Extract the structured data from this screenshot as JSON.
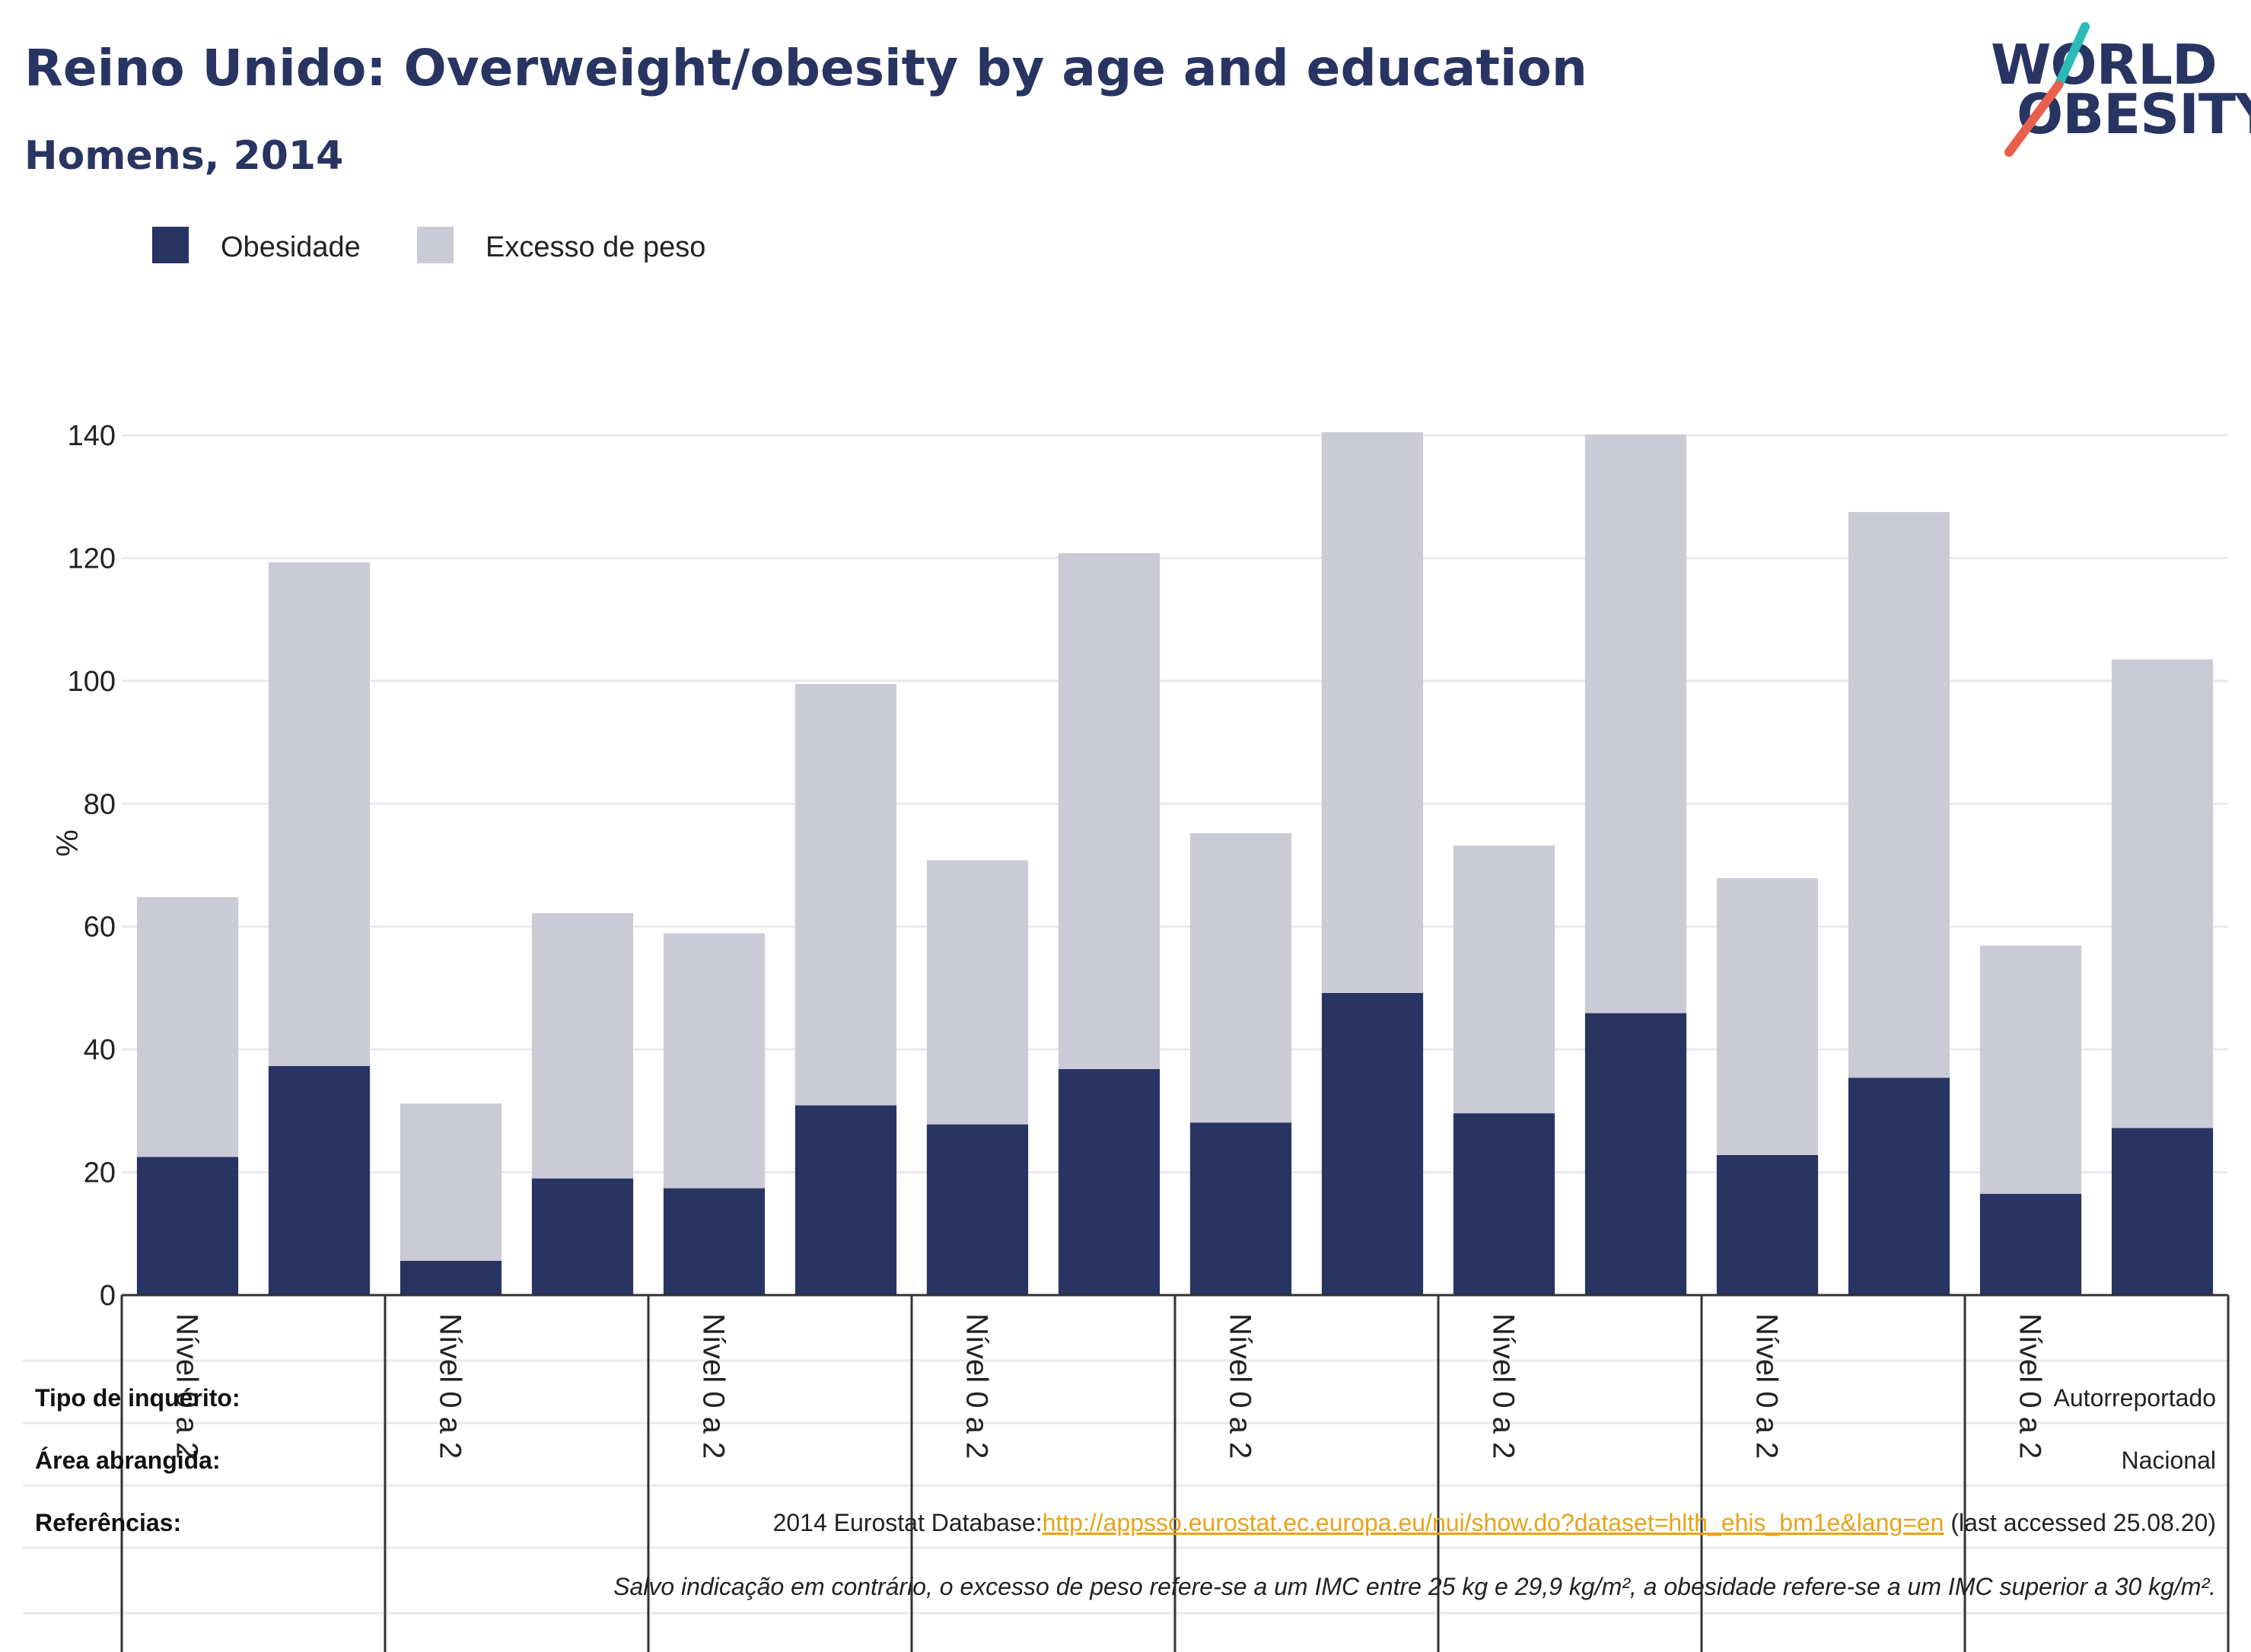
{
  "header": {
    "title": "Reino Unido: Overweight/obesity by age and education",
    "subtitle": "Homens, 2014"
  },
  "logo": {
    "line1": "WORLD",
    "line2": "OBESITY",
    "text_color": "#283462",
    "slash_colors": [
      "#2bbbb6",
      "#e8604c"
    ]
  },
  "colors": {
    "obesity": "#283462",
    "overweight": "#cacbd7",
    "grid": "#e9e9ee",
    "axis": "#333333"
  },
  "chart_data": {
    "type": "bar",
    "stacked": true,
    "title": "Reino Unido: Overweight/obesity by age and education",
    "subtitle": "Homens, 2014",
    "ylabel": "%",
    "ylim": [
      0,
      140
    ],
    "yticks": [
      0,
      20,
      40,
      60,
      80,
      100,
      120,
      140
    ],
    "grid": true,
    "legend_position": "top-left",
    "categories": [
      "Nível 0 a 2",
      "",
      "Nível 0 a 2",
      "",
      "Nível 0 a 2",
      "",
      "Nível 0 a 2",
      "",
      "Nível 0 a 2",
      "",
      "Nível 0 a 2",
      "",
      "Nível 0 a 2",
      "",
      "Nível 0 a 2",
      ""
    ],
    "series": [
      {
        "name": "Obesidade",
        "color": "#283462",
        "values": [
          22.5,
          37.3,
          5.6,
          19.0,
          17.4,
          30.9,
          27.8,
          36.8,
          28.1,
          49.2,
          29.6,
          45.9,
          22.8,
          35.4,
          16.5,
          27.2
        ]
      },
      {
        "name": "Excesso de peso",
        "color": "#cacbd7",
        "values": [
          42.3,
          82.0,
          25.6,
          43.2,
          41.5,
          68.6,
          43.0,
          84.0,
          47.1,
          91.3,
          43.6,
          94.2,
          45.1,
          92.1,
          40.4,
          76.3
        ]
      }
    ]
  },
  "footer": {
    "rows": [
      {
        "label": "Tipo de inquérito:",
        "value": "Autorreportado"
      },
      {
        "label": "Área abrangida:",
        "value": "Nacional"
      },
      {
        "label": "Referências:",
        "value_prefix": "2014 Eurostat Database:",
        "link": "http://appsso.eurostat.ec.europa.eu/nui/show.do?dataset=hlth_ehis_bm1e&lang=en",
        "value_suffix": " (last accessed 25.08.20)"
      }
    ],
    "note": "Salvo indicação em contrário, o excesso de peso refere-se a um IMC entre 25 kg e 29,9 kg/m², a obesidade refere-se a um IMC superior a 30 kg/m²."
  }
}
